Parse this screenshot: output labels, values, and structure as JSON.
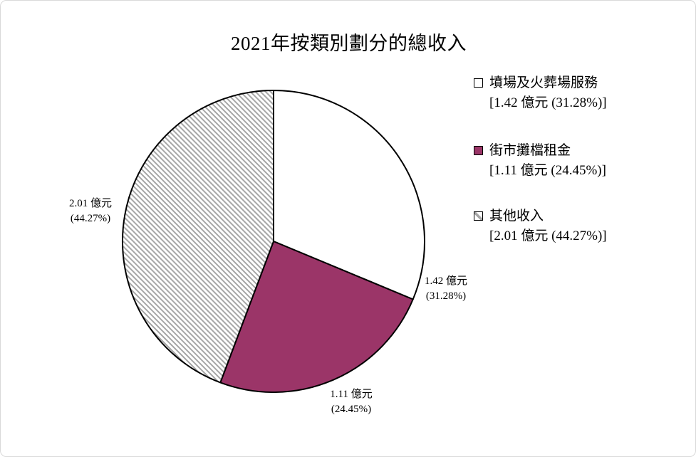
{
  "title": "2021年按類別劃分的總收入",
  "chart_data": {
    "type": "pie",
    "title": "2021年按類別劃分的總收入",
    "unit": "億元",
    "direction": "clockwise",
    "start_angle": "12-oclock",
    "legend_position": "right",
    "slices": [
      {
        "label": "墳場及火葬場服務",
        "value": 1.42,
        "percent": 31.28,
        "value_text": "1.42 億元",
        "percent_text": "(31.28%)",
        "legend_detail": "[1.42 億元 (31.28%)]",
        "fill": "#FFFFFF",
        "pattern": "none"
      },
      {
        "label": "街市攤檔租金",
        "value": 1.11,
        "percent": 24.45,
        "value_text": "1.11 億元",
        "percent_text": "(24.45%)",
        "legend_detail": "[1.11 億元 (24.45%)]",
        "fill": "#9B3568",
        "pattern": "solid"
      },
      {
        "label": "其他收入",
        "value": 2.01,
        "percent": 44.27,
        "value_text": "2.01 億元",
        "percent_text": "(44.27%)",
        "legend_detail": "[2.01 億元 (44.27%)]",
        "fill": "hatch",
        "pattern": "diagonal-hatch"
      }
    ],
    "colors": {
      "outline": "#000000",
      "solid": "#9B3568",
      "hatch_line": "#A6A6A6",
      "hatch_bg": "#FFFFFF"
    }
  }
}
